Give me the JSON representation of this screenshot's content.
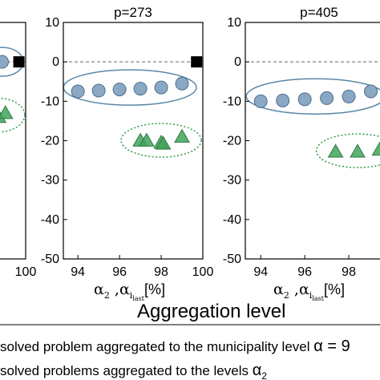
{
  "figure": {
    "shared_xlabel": "Aggregation level",
    "axis_label_parts": {
      "alpha2": "α",
      "sub2": "2",
      "sep": " ,",
      "alpha_i": "α",
      "sub_i": "i",
      "sub_last": "last",
      "unit": "[%]"
    },
    "legend": {
      "line1_text": "solved problem aggregated to the municipality level ",
      "line1_symbol": "α = 9",
      "line2_text": "solved problems aggregated to the levels ",
      "line2_symbol": "α",
      "line2_sub": "2"
    }
  },
  "colors": {
    "circle_fill": "#8aa8c4",
    "circle_edge": "#4b6f8f",
    "ellipse_stroke": "#5b88a6",
    "triangle_fill": "#3fa35a",
    "triangle_edge": "#2e7a43",
    "dotted_stroke": "#2e9a4a",
    "square": "#000000"
  },
  "chart_data": [
    {
      "type": "scatter",
      "title": "",
      "ylim": [
        -50,
        10
      ],
      "yticks": [
        10,
        0,
        -10,
        -20,
        -30,
        -40,
        -50
      ],
      "xticks": [
        "100"
      ],
      "grid": false,
      "reference_line_y": 0,
      "series": [
        {
          "marker": "circle",
          "x": [
            99.0,
            99.3
          ],
          "y": [
            0,
            0
          ]
        },
        {
          "marker": "square",
          "x": [
            99.8
          ],
          "y": [
            0
          ]
        },
        {
          "marker": "triangle",
          "x": [
            99.0,
            99.2,
            99.4
          ],
          "y": [
            -13,
            -14,
            -13
          ]
        }
      ]
    },
    {
      "type": "scatter",
      "title": "p=273",
      "xlim": [
        93.3,
        100
      ],
      "ylim": [
        -50,
        10
      ],
      "xticks": [
        "94",
        "96",
        "98",
        "100"
      ],
      "yticks": [
        10,
        0,
        -10,
        -20,
        -30,
        -40,
        -50
      ],
      "grid": false,
      "reference_line_y": 0,
      "series": [
        {
          "marker": "circle",
          "x": [
            94,
            95,
            96,
            97,
            98,
            99
          ],
          "y": [
            -7.5,
            -7.3,
            -7.0,
            -6.8,
            -6.5,
            -5.5
          ]
        },
        {
          "marker": "triangle",
          "x": [
            97.0,
            97.3,
            98.0,
            98.1,
            99.0
          ],
          "y": [
            -20,
            -20,
            -20.5,
            -20.8,
            -19
          ]
        },
        {
          "marker": "square",
          "x": [
            99.7
          ],
          "y": [
            0
          ]
        }
      ]
    },
    {
      "type": "scatter",
      "title": "p=405",
      "xlim": [
        93.3,
        100
      ],
      "ylim": [
        -50,
        10
      ],
      "xticks": [
        "94",
        "96",
        "98"
      ],
      "yticks": [
        10,
        0,
        -10,
        -20,
        -30,
        -40,
        -50
      ],
      "grid": false,
      "reference_line_y": 0,
      "series": [
        {
          "marker": "circle",
          "x": [
            94,
            95,
            96,
            97,
            98,
            99
          ],
          "y": [
            -10,
            -9.8,
            -9.5,
            -9.2,
            -8.8,
            -7.5
          ]
        },
        {
          "marker": "triangle",
          "x": [
            97.4,
            98.4,
            99.4
          ],
          "y": [
            -22.8,
            -22.8,
            -22.3
          ]
        }
      ]
    }
  ]
}
